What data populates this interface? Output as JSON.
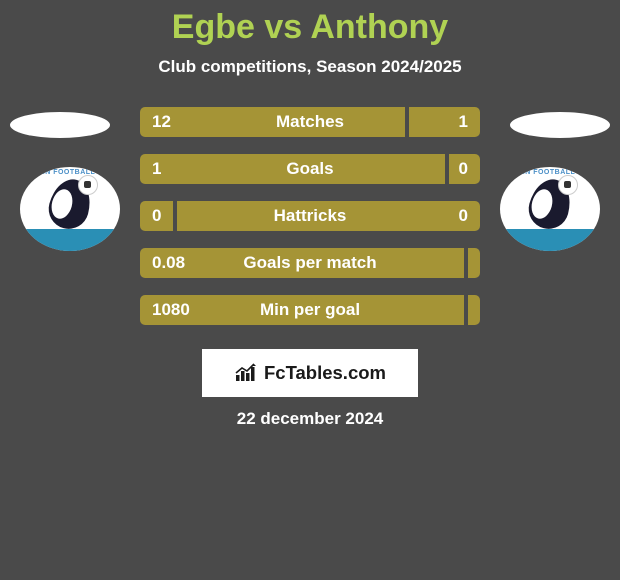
{
  "title_color": "#b0d253",
  "header": {
    "title": "Egbe vs Anthony",
    "subtitle": "Club competitions, Season 2024/2025"
  },
  "stats": [
    {
      "label": "Matches",
      "left_val": "12",
      "right_val": "1",
      "left_pct": 78,
      "right_pct": 22
    },
    {
      "label": "Goals",
      "left_val": "1",
      "right_val": "0",
      "left_pct": 90,
      "right_pct": 10
    },
    {
      "label": "Hattricks",
      "left_val": "0",
      "right_val": "0",
      "left_pct": 10,
      "right_pct": 90
    },
    {
      "label": "Goals per match",
      "left_val": "0.08",
      "right_val": "",
      "left_pct": 97,
      "right_pct": 3
    },
    {
      "label": "Min per goal",
      "left_val": "1080",
      "right_val": "",
      "left_pct": 97,
      "right_pct": 3
    }
  ],
  "bar_fill_color": "#a59436",
  "bar_gap_color": "#4a4a4a",
  "brand": {
    "text": "FcTables.com",
    "bg": "#ffffff",
    "icon_color": "#1a1a1a"
  },
  "date": "22 december 2024",
  "club_logo_text": "-PHIN FOOTBALL CL-"
}
